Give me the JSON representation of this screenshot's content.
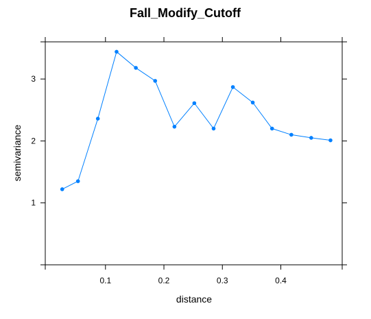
{
  "chart_data": {
    "type": "line",
    "title": "Fall_Modify_Cutoff",
    "xlabel": "distance",
    "ylabel": "semivariance",
    "xlim": [
      -0.003,
      0.505
    ],
    "ylim": [
      0.0,
      3.6
    ],
    "xticks": [
      0.1,
      0.2,
      0.3,
      0.4
    ],
    "xtick_labels": [
      "0.1",
      "0.2",
      "0.3",
      "0.4"
    ],
    "yticks": [
      1,
      2,
      3
    ],
    "ytick_labels": [
      "1",
      "2",
      "3"
    ],
    "grid": false,
    "legend": "none",
    "series": [
      {
        "color": "#0080ff",
        "points": [
          {
            "x": 0.026,
            "y": 1.22
          },
          {
            "x": 0.053,
            "y": 1.35
          },
          {
            "x": 0.087,
            "y": 2.36
          },
          {
            "x": 0.119,
            "y": 3.44
          },
          {
            "x": 0.152,
            "y": 3.18
          },
          {
            "x": 0.185,
            "y": 2.97
          },
          {
            "x": 0.218,
            "y": 2.23
          },
          {
            "x": 0.252,
            "y": 2.61
          },
          {
            "x": 0.285,
            "y": 2.2
          },
          {
            "x": 0.318,
            "y": 2.87
          },
          {
            "x": 0.352,
            "y": 2.62
          },
          {
            "x": 0.385,
            "y": 2.2
          },
          {
            "x": 0.418,
            "y": 2.1
          },
          {
            "x": 0.452,
            "y": 2.05
          },
          {
            "x": 0.485,
            "y": 2.01
          }
        ]
      }
    ]
  }
}
